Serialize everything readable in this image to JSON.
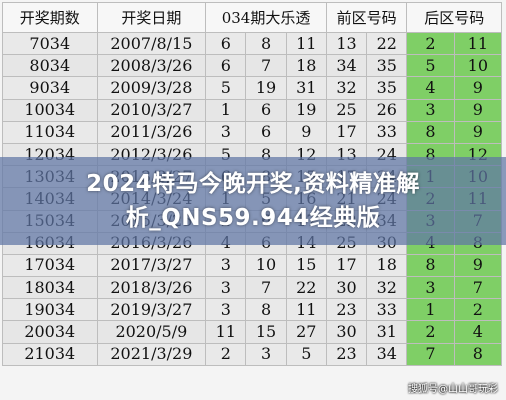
{
  "table": {
    "headers": [
      "开奖期数",
      "开奖日期",
      "034期大乐透",
      "前区号码",
      "后区号码"
    ],
    "rows": [
      [
        "7034",
        "2007/8/15",
        "6",
        "8",
        "11",
        "13",
        "22",
        "2",
        "11"
      ],
      [
        "8034",
        "2008/3/26",
        "6",
        "7",
        "18",
        "34",
        "35",
        "5",
        "10"
      ],
      [
        "9034",
        "2009/3/28",
        "5",
        "19",
        "31",
        "32",
        "35",
        "4",
        "9"
      ],
      [
        "10034",
        "2010/3/27",
        "1",
        "6",
        "19",
        "25",
        "26",
        "3",
        "9"
      ],
      [
        "11034",
        "2011/3/26",
        "3",
        "6",
        "9",
        "17",
        "33",
        "8",
        "9"
      ],
      [
        "12034",
        "2012/3/26",
        "5",
        "8",
        "12",
        "13",
        "24",
        "8",
        "12"
      ],
      [
        "13034",
        "2013/3/27",
        "6",
        "8",
        "15",
        "17",
        "34",
        "1",
        "10"
      ],
      [
        "14034",
        "2014/3/24",
        "1",
        "5",
        "16",
        "21",
        "24",
        "2",
        "11"
      ],
      [
        "15034",
        "2015/3/25",
        "2",
        "6",
        "17",
        "22",
        "34",
        "3",
        "7"
      ],
      [
        "16034",
        "2016/3/26",
        "4",
        "6",
        "14",
        "25",
        "30",
        "4",
        "8"
      ],
      [
        "17034",
        "2017/3/27",
        "3",
        "10",
        "15",
        "17",
        "18",
        "8",
        "9"
      ],
      [
        "18034",
        "2018/3/26",
        "3",
        "7",
        "22",
        "30",
        "32",
        "3",
        "7"
      ],
      [
        "19034",
        "2019/3/27",
        "3",
        "8",
        "11",
        "23",
        "33",
        "1",
        "2"
      ],
      [
        "20034",
        "2020/5/9",
        "11",
        "15",
        "27",
        "30",
        "31",
        "2",
        "4"
      ],
      [
        "21034",
        "2021/3/29",
        "2",
        "3",
        "5",
        "23",
        "34",
        "7",
        "8"
      ]
    ]
  },
  "banner": {
    "line1": "2024特马今晚开奖,资料精准解",
    "line2": "析_QNS59.944经典版"
  },
  "watermark": "搜狐号@山山哥玩彩",
  "colors": {
    "back_zone_green": "#7fcf66",
    "banner_overlay": "#5f76a5"
  }
}
